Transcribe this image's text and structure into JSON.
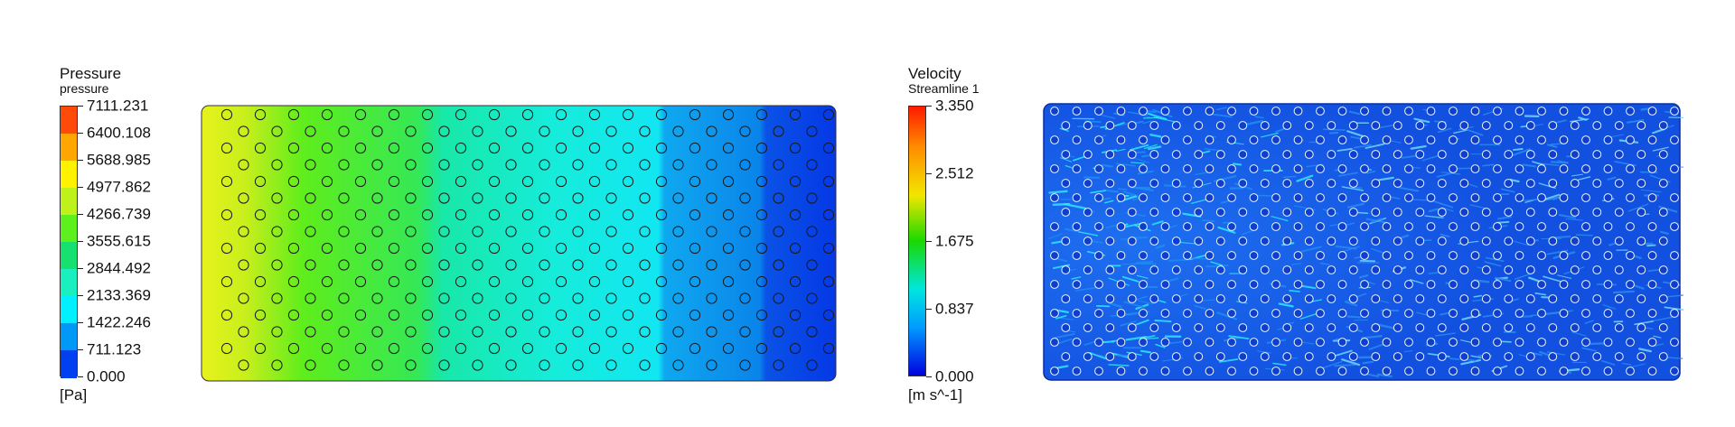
{
  "pressure_legend": {
    "title": "Pressure",
    "subtitle": "pressure",
    "unit": "[Pa]",
    "ticks": [
      "7111.231",
      "6400.108",
      "5688.985",
      "4977.862",
      "4266.739",
      "3555.615",
      "2844.492",
      "2133.369",
      "1422.246",
      "711.123",
      "0.000"
    ],
    "band_colors": [
      "#ff4a0a",
      "#ffa600",
      "#fff200",
      "#bff21a",
      "#5ef01e",
      "#16e070",
      "#1af0bf",
      "#00f0ff",
      "#0099f5",
      "#0040f0"
    ]
  },
  "velocity_legend": {
    "title": "Velocity",
    "subtitle": "Streamline 1",
    "unit": "[m s^-1]",
    "ticks": [
      "3.350",
      "2.512",
      "1.675",
      "0.837",
      "0.000"
    ]
  },
  "colors": {
    "pressure_inlet": "#d8ef1a",
    "pressure_mid": "#18efe0",
    "pressure_outlet": "#0038e8",
    "velocity_base": "#1457e6",
    "velocity_high": "#2ee6ff"
  }
}
